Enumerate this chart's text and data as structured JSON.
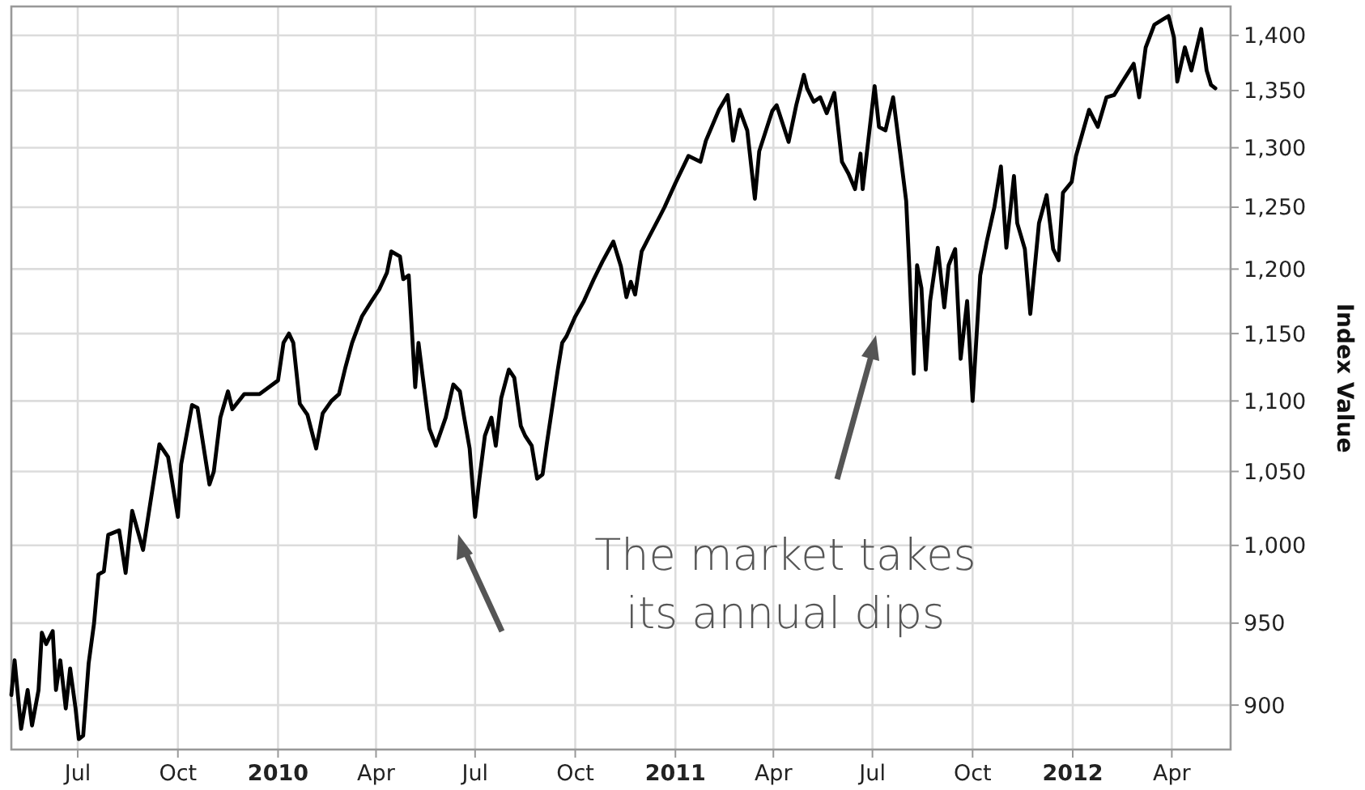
{
  "chart_data": {
    "type": "line",
    "ylabel": "Index Value",
    "log": "y",
    "grid": true,
    "line_style": "solid",
    "xlim": [
      "2009-05-01",
      "2012-05-25"
    ],
    "xticks": [
      {
        "value": "2009-07-01",
        "label": "Jul"
      },
      {
        "value": "2009-10-01",
        "label": "Oct"
      },
      {
        "value": "2010-01-01",
        "label": "2010"
      },
      {
        "value": "2010-04-01",
        "label": "Apr"
      },
      {
        "value": "2010-07-01",
        "label": "Jul"
      },
      {
        "value": "2010-10-01",
        "label": "Oct"
      },
      {
        "value": "2011-01-01",
        "label": "2011"
      },
      {
        "value": "2011-04-01",
        "label": "Apr"
      },
      {
        "value": "2011-07-01",
        "label": "Jul"
      },
      {
        "value": "2011-10-01",
        "label": "Oct"
      },
      {
        "value": "2012-01-01",
        "label": "2012"
      },
      {
        "value": "2012-04-01",
        "label": "Apr"
      }
    ],
    "ylim": [
      874,
      1427
    ],
    "yticks": [
      {
        "value": 900,
        "label": "900"
      },
      {
        "value": 950,
        "label": "950"
      },
      {
        "value": 1000,
        "label": "1,000"
      },
      {
        "value": 1050,
        "label": "1,050"
      },
      {
        "value": 1100,
        "label": "1,100"
      },
      {
        "value": 1150,
        "label": "1,150"
      },
      {
        "value": 1200,
        "label": "1,200"
      },
      {
        "value": 1250,
        "label": "1,250"
      },
      {
        "value": 1300,
        "label": "1,300"
      },
      {
        "value": 1350,
        "label": "1,350"
      },
      {
        "value": 1400,
        "label": "1,400"
      }
    ],
    "annotations": [
      "The market takes\nits annual dips"
    ],
    "x": [
      "2009-05-01",
      "2009-05-04",
      "2009-05-10",
      "2009-05-16",
      "2009-05-20",
      "2009-05-26",
      "2009-05-29",
      "2009-06-02",
      "2009-06-08",
      "2009-06-11",
      "2009-06-15",
      "2009-06-20",
      "2009-06-24",
      "2009-06-29",
      "2009-07-02",
      "2009-07-06",
      "2009-07-11",
      "2009-07-16",
      "2009-07-20",
      "2009-07-25",
      "2009-07-29",
      "2009-08-08",
      "2009-08-14",
      "2009-08-20",
      "2009-08-30",
      "2009-09-14",
      "2009-09-22",
      "2009-10-01",
      "2009-10-04",
      "2009-10-14",
      "2009-10-19",
      "2009-10-30",
      "2009-11-03",
      "2009-11-09",
      "2009-11-16",
      "2009-11-20",
      "2009-12-01",
      "2009-12-15",
      "2010-01-01",
      "2010-01-06",
      "2010-01-11",
      "2010-01-15",
      "2010-01-21",
      "2010-01-28",
      "2010-02-05",
      "2010-02-11",
      "2010-02-19",
      "2010-02-26",
      "2010-03-04",
      "2010-03-10",
      "2010-03-19",
      "2010-03-28",
      "2010-04-04",
      "2010-04-11",
      "2010-04-15",
      "2010-04-23",
      "2010-04-26",
      "2010-05-01",
      "2010-05-07",
      "2010-05-10",
      "2010-05-14",
      "2010-05-20",
      "2010-05-26",
      "2010-06-04",
      "2010-06-11",
      "2010-06-17",
      "2010-06-21",
      "2010-06-26",
      "2010-07-01",
      "2010-07-05",
      "2010-07-10",
      "2010-07-16",
      "2010-07-20",
      "2010-07-25",
      "2010-08-01",
      "2010-08-06",
      "2010-08-12",
      "2010-08-16",
      "2010-08-22",
      "2010-08-27",
      "2010-09-01",
      "2010-09-05",
      "2010-09-15",
      "2010-09-19",
      "2010-09-23",
      "2010-10-01",
      "2010-10-09",
      "2010-10-18",
      "2010-10-26",
      "2010-11-05",
      "2010-11-12",
      "2010-11-17",
      "2010-11-21",
      "2010-11-25",
      "2010-12-01",
      "2010-12-08",
      "2010-12-18",
      "2010-12-22",
      "2011-01-01",
      "2011-01-13",
      "2011-01-24",
      "2011-01-29",
      "2011-02-10",
      "2011-02-18",
      "2011-02-23",
      "2011-03-01",
      "2011-03-08",
      "2011-03-15",
      "2011-03-19",
      "2011-03-31",
      "2011-04-04",
      "2011-04-15",
      "2011-04-22",
      "2011-04-29",
      "2011-05-02",
      "2011-05-08",
      "2011-05-14",
      "2011-05-20",
      "2011-05-27",
      "2011-06-03",
      "2011-06-09",
      "2011-06-15",
      "2011-06-20",
      "2011-06-22",
      "2011-07-03",
      "2011-07-07",
      "2011-07-13",
      "2011-07-20",
      "2011-07-27",
      "2011-08-01",
      "2011-08-04",
      "2011-08-08",
      "2011-08-11",
      "2011-08-15",
      "2011-08-19",
      "2011-08-23",
      "2011-08-30",
      "2011-09-05",
      "2011-09-09",
      "2011-09-15",
      "2011-09-20",
      "2011-09-26",
      "2011-10-01",
      "2011-10-08",
      "2011-10-14",
      "2011-10-21",
      "2011-10-27",
      "2011-11-01",
      "2011-11-08",
      "2011-11-11",
      "2011-11-18",
      "2011-11-23",
      "2011-12-01",
      "2011-12-08",
      "2011-12-14",
      "2011-12-19",
      "2011-12-23",
      "2011-12-31",
      "2012-01-04",
      "2012-01-16",
      "2012-01-24",
      "2012-02-01",
      "2012-02-08",
      "2012-02-15",
      "2012-02-26",
      "2012-03-02",
      "2012-03-08",
      "2012-03-16",
      "2012-03-24",
      "2012-03-29",
      "2012-04-03",
      "2012-04-06",
      "2012-04-13",
      "2012-04-19",
      "2012-04-28",
      "2012-05-03",
      "2012-05-07",
      "2012-05-11"
    ],
    "series": [
      {
        "color": "#000000",
        "values": [
          906,
          927,
          886,
          909,
          888,
          909,
          944,
          937,
          945,
          909,
          927,
          898,
          922,
          898,
          880,
          882,
          925,
          950,
          981,
          983,
          1007,
          1010,
          982,
          1023,
          997,
          1069,
          1060,
          1019,
          1055,
          1097,
          1095,
          1041,
          1050,
          1088,
          1107,
          1094,
          1105,
          1105,
          1115,
          1143,
          1150,
          1143,
          1098,
          1090,
          1066,
          1091,
          1100,
          1105,
          1125,
          1143,
          1163,
          1175,
          1184,
          1197,
          1214,
          1210,
          1192,
          1195,
          1110,
          1143,
          1117,
          1080,
          1068,
          1088,
          1112,
          1107,
          1088,
          1066,
          1019,
          1045,
          1075,
          1088,
          1068,
          1102,
          1123,
          1117,
          1082,
          1075,
          1068,
          1045,
          1048,
          1070,
          1123,
          1143,
          1148,
          1163,
          1175,
          1192,
          1206,
          1222,
          1202,
          1178,
          1190,
          1180,
          1214,
          1226,
          1243,
          1250,
          1270,
          1293,
          1288,
          1306,
          1333,
          1346,
          1306,
          1333,
          1315,
          1257,
          1297,
          1332,
          1337,
          1305,
          1337,
          1364,
          1352,
          1340,
          1344,
          1330,
          1348,
          1288,
          1278,
          1265,
          1295,
          1265,
          1354,
          1318,
          1315,
          1344,
          1292,
          1255,
          1199,
          1120,
          1203,
          1185,
          1123,
          1175,
          1217,
          1170,
          1203,
          1216,
          1131,
          1175,
          1100,
          1195,
          1222,
          1250,
          1284,
          1217,
          1276,
          1237,
          1216,
          1165,
          1237,
          1260,
          1216,
          1207,
          1262,
          1271,
          1293,
          1333,
          1318,
          1344,
          1346,
          1357,
          1374,
          1344,
          1389,
          1410,
          1415,
          1418,
          1398,
          1358,
          1389,
          1368,
          1406,
          1368,
          1355,
          1352
        ]
      }
    ]
  }
}
